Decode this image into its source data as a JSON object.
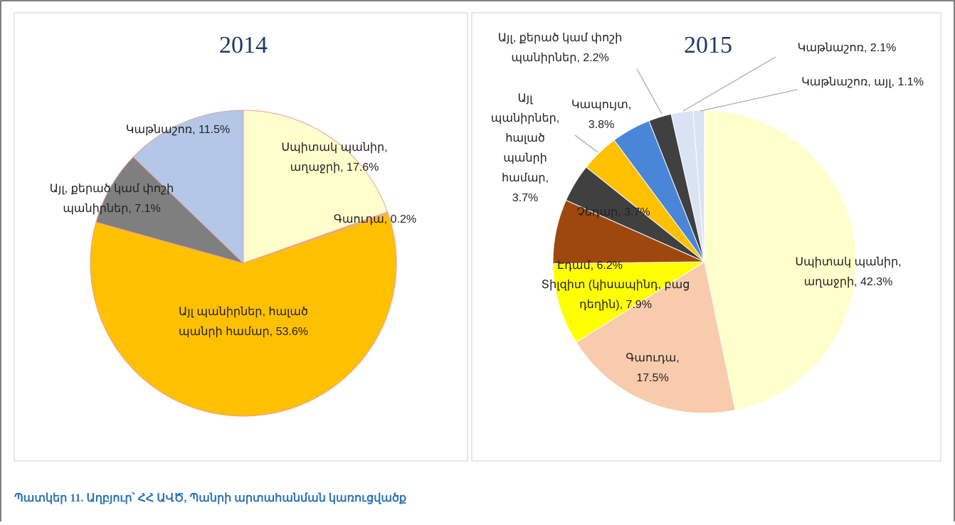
{
  "chart_data": [
    {
      "type": "pie",
      "title": "2014",
      "values": [
        17.6,
        0.2,
        53.6,
        7.1,
        11.5
      ],
      "value_labels": [
        "Սպիտակ պանիր,\nաղաջրի, 17.6%",
        "Գաուդա, 0.2%",
        "Այլ պանիրներ, հալած\nպանրի համար, 53.6%",
        "Այլ, քերած կամ փոշի\nպանիրներ, 7.1%",
        "Կաթնաշոռ, 11.5%"
      ],
      "colors": [
        "#ffffcc",
        "#f4b183",
        "#ffc000",
        "#7f7f7f",
        "#b4c7e7"
      ]
    },
    {
      "type": "pie",
      "title": "2015",
      "values": [
        42.3,
        17.5,
        7.9,
        6.2,
        3.7,
        3.7,
        3.8,
        2.2,
        2.1,
        1.1
      ],
      "value_labels": [
        "Սպիտակ պանիր,\nաղաջրի, 42.3%",
        "Գաուդա,\n17.5%",
        "Տիլզիտ (կիսապինդ, բաց\nդեղին), 7.9%",
        "Էդամ, 6.2%",
        "Չեդար, 3.7%",
        "Այլ\nպանիրներ,\nհալած\nպանրի\nհամար,\n3.7%",
        "Կապույտ,\n3.8%",
        "Այլ, քերած կամ փոշի\nպանիրներ, 2.2%",
        "Կաթնաշոռ, 2.1%",
        "Կաթնաշոռ, այլ, 1.1%"
      ],
      "colors": [
        "#ffffcc",
        "#f8cbad",
        "#ffff00",
        "#9e480e",
        "#404040",
        "#ffc000",
        "#4a86d8",
        "#404040",
        "#dae3f3",
        "#dae3f3"
      ]
    }
  ],
  "caption": "Պատկեր 11. Աղբյուր՝ ՀՀ ԱՎԾ, Պանրի արտահանման կառուցվածք"
}
